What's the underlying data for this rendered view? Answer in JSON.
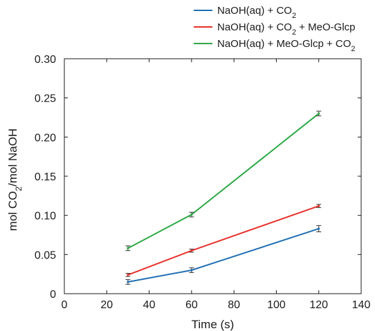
{
  "chart_data": {
    "type": "line",
    "xlabel": "Time (s)",
    "ylabel_parts": [
      "mol CO",
      "2",
      "/mol NaOH"
    ],
    "xlim": [
      0,
      140
    ],
    "ylim": [
      0,
      0.3
    ],
    "xticks": [
      0,
      20,
      40,
      60,
      80,
      100,
      120,
      140
    ],
    "yticks": [
      0,
      0.05,
      0.1,
      0.15,
      0.2,
      0.25,
      0.3
    ],
    "ytick_labels": [
      "0",
      "0.05",
      "0.10",
      "0.15",
      "0.20",
      "0.25",
      "0.30"
    ],
    "xtick_labels": [
      "0",
      "20",
      "40",
      "60",
      "80",
      "100",
      "120",
      "140"
    ],
    "grid": false,
    "legend_position": "top-right, above plot",
    "x": [
      30,
      60,
      120
    ],
    "series": [
      {
        "name_parts": [
          "NaOH(aq) + CO",
          "2",
          ""
        ],
        "color": "#1f6fb5",
        "values": [
          0.015,
          0.03,
          0.083
        ],
        "errors": [
          0.003,
          0.003,
          0.004
        ]
      },
      {
        "name_parts": [
          "NaOH(aq) + CO",
          "2",
          " + MeO-Glcp"
        ],
        "color": "#e8302a",
        "values": [
          0.024,
          0.055,
          0.112
        ],
        "errors": [
          0.002,
          0.002,
          0.002
        ]
      },
      {
        "name_parts": [
          "NaOH(aq) + MeO-Glcp + CO",
          "2",
          ""
        ],
        "color": "#2ca844",
        "values": [
          0.058,
          0.101,
          0.23
        ],
        "errors": [
          0.003,
          0.003,
          0.003
        ]
      }
    ]
  }
}
